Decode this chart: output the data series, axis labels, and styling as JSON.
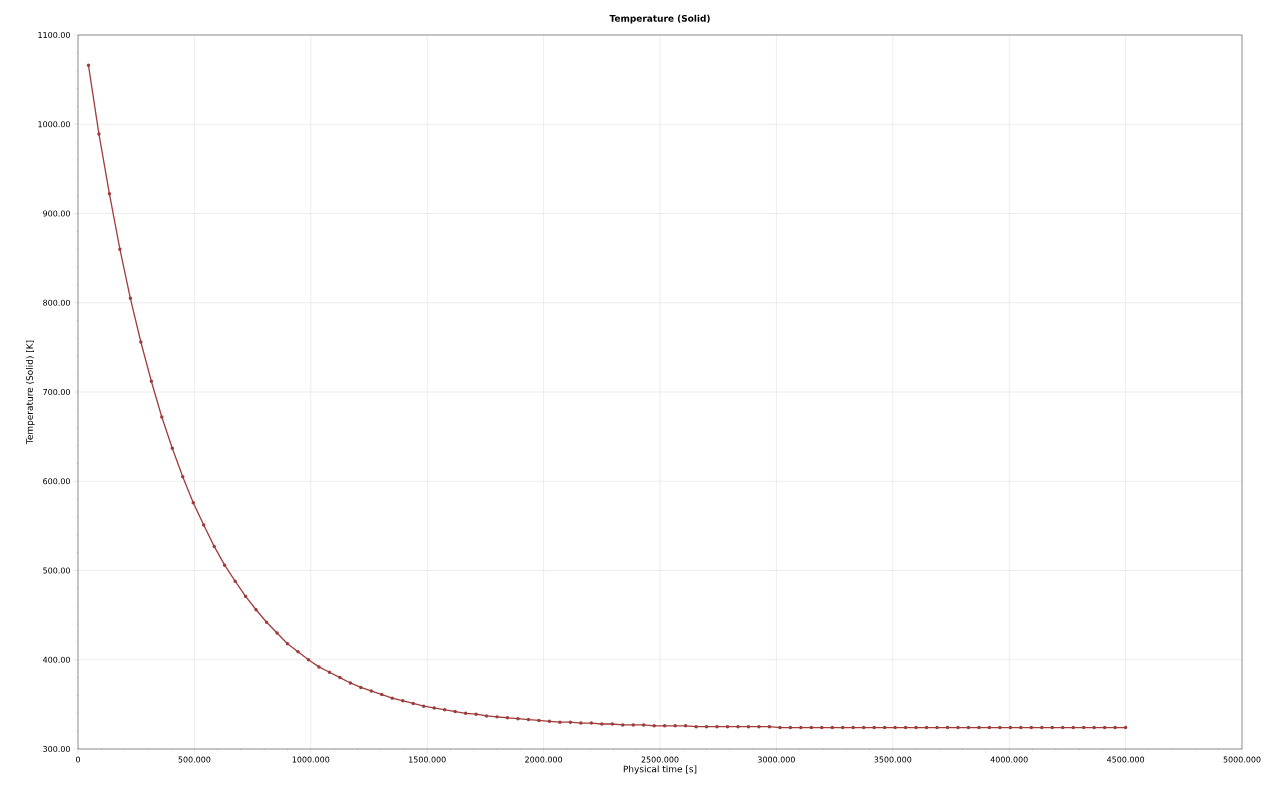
{
  "chart_data": {
    "type": "line",
    "title": "Temperature (Solid)",
    "xlabel": "Physical time [s]",
    "ylabel": "Temperature (Solid) [K]",
    "x": [
      45,
      90,
      135,
      180,
      225,
      270,
      315,
      360,
      405,
      450,
      495,
      540,
      585,
      630,
      675,
      720,
      765,
      810,
      855,
      900,
      945,
      990,
      1035,
      1080,
      1125,
      1170,
      1215,
      1260,
      1305,
      1350,
      1395,
      1440,
      1485,
      1530,
      1575,
      1620,
      1665,
      1710,
      1755,
      1800,
      1845,
      1890,
      1935,
      1980,
      2025,
      2070,
      2115,
      2160,
      2205,
      2250,
      2295,
      2340,
      2385,
      2430,
      2475,
      2520,
      2565,
      2610,
      2655,
      2700,
      2745,
      2790,
      2835,
      2880,
      2925,
      2970,
      3015,
      3060,
      3105,
      3150,
      3195,
      3240,
      3285,
      3330,
      3375,
      3420,
      3465,
      3510,
      3555,
      3600,
      3645,
      3690,
      3735,
      3780,
      3825,
      3870,
      3915,
      3960,
      4005,
      4050,
      4095,
      4140,
      4185,
      4230,
      4275,
      4320,
      4365,
      4410,
      4455,
      4500
    ],
    "series": [
      {
        "color": "#a03c3c",
        "values": [
          1066,
          989,
          922,
          860,
          805,
          756,
          712,
          672,
          637,
          605,
          576,
          551,
          527,
          506,
          488,
          471,
          456,
          442,
          430,
          418,
          409,
          400,
          392,
          386,
          380,
          374,
          369,
          365,
          361,
          357,
          354,
          351,
          348,
          346,
          344,
          342,
          340,
          339,
          337,
          336,
          335,
          334,
          333,
          332,
          331,
          330,
          330,
          329,
          329,
          328,
          328,
          327,
          327,
          327,
          326,
          326,
          326,
          326,
          325,
          325,
          325,
          325,
          325,
          325,
          325,
          325,
          324,
          324,
          324,
          324,
          324,
          324,
          324,
          324,
          324,
          324,
          324,
          324,
          324,
          324,
          324,
          324,
          324,
          324,
          324,
          324,
          324,
          324,
          324,
          324,
          324,
          324,
          324,
          324,
          324,
          324,
          324,
          324,
          324,
          324
        ]
      }
    ],
    "xlim": [
      0,
      5000
    ],
    "ylim": [
      300,
      1100
    ],
    "xticks": [
      {
        "value": 0,
        "label": "0"
      },
      {
        "value": 500,
        "label": "500.000"
      },
      {
        "value": 1000,
        "label": "1000.000"
      },
      {
        "value": 1500,
        "label": "1500.000"
      },
      {
        "value": 2000,
        "label": "2000.000"
      },
      {
        "value": 2500,
        "label": "2500.000"
      },
      {
        "value": 3000,
        "label": "3000.000"
      },
      {
        "value": 3500,
        "label": "3500.000"
      },
      {
        "value": 4000,
        "label": "4000.000"
      },
      {
        "value": 4500,
        "label": "4500.000"
      },
      {
        "value": 5000,
        "label": "5000.000"
      }
    ],
    "yticks": [
      {
        "value": 300,
        "label": "300.00"
      },
      {
        "value": 400,
        "label": "400.00"
      },
      {
        "value": 500,
        "label": "500.00"
      },
      {
        "value": 600,
        "label": "600.00"
      },
      {
        "value": 700,
        "label": "700.00"
      },
      {
        "value": 800,
        "label": "800.00"
      },
      {
        "value": 900,
        "label": "900.00"
      },
      {
        "value": 1000,
        "label": "1000.00"
      },
      {
        "value": 1100,
        "label": "1100.00"
      }
    ],
    "grid": true,
    "marker": "circle",
    "line_style": "solid"
  }
}
